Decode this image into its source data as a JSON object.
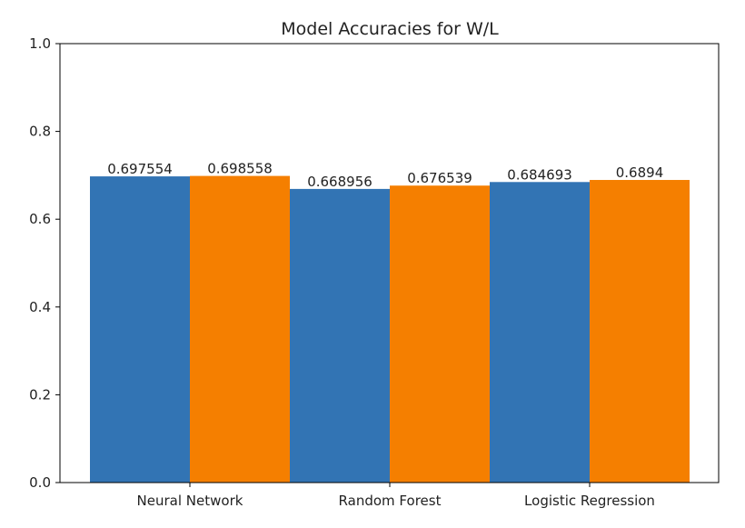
{
  "chart_data": {
    "type": "bar",
    "title": "Model Accuracies for W/L",
    "xlabel": "",
    "ylabel": "",
    "ylim": [
      0,
      1.0
    ],
    "yticks": [
      "0.0",
      "0.2",
      "0.4",
      "0.6",
      "0.8",
      "1.0"
    ],
    "categories": [
      "Neural Network",
      "Random Forest",
      "Logistic Regression"
    ],
    "series": [
      {
        "color": "#3274b4",
        "values": [
          0.697554,
          0.668956,
          0.684693
        ],
        "labels": [
          "0.697554",
          "0.668956",
          "0.684693"
        ]
      },
      {
        "color": "#f57f00",
        "values": [
          0.698558,
          0.676539,
          0.6894
        ],
        "labels": [
          "0.698558",
          "0.676539",
          "0.6894"
        ]
      }
    ],
    "legend": false,
    "grid": false
  }
}
